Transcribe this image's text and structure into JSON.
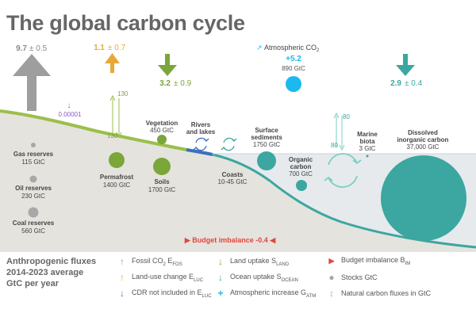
{
  "title": "The global carbon cycle",
  "colors": {
    "fossil": "#9e9e9e",
    "luc": "#e8a838",
    "land": "#7aa63a",
    "ocean": "#3ba7a0",
    "atmos": "#1ab9ef",
    "cdr": "#8c5cc2",
    "imbalance": "#e2463c",
    "stock": "#a8a8a8"
  },
  "fluxes": {
    "fossil": {
      "value": "9.7",
      "unc": "± 0.5"
    },
    "luc": {
      "value": "1.1",
      "unc": "± 0.7"
    },
    "land": {
      "value": "3.2",
      "unc": "± 0.9"
    },
    "atmos": {
      "label": "Atmospheric CO",
      "sub": "2",
      "value": "+5.2",
      "stock": "890 GtC"
    },
    "ocean": {
      "value": "2.9",
      "unc": "± 0.4"
    },
    "cdr": {
      "value": "0.00001"
    }
  },
  "natural": {
    "land_up": "130",
    "land_down": "130",
    "ocean_up": "80",
    "ocean_down": "80"
  },
  "stocks": {
    "gas": {
      "name": "Gas reserves",
      "value": "115 GtC"
    },
    "oil": {
      "name": "Oil reserves",
      "value": "230 GtC"
    },
    "coal": {
      "name": "Coal reserves",
      "value": "560 GtC"
    },
    "permafrost": {
      "name": "Permafrost",
      "value": "1400 GtC"
    },
    "vegetation": {
      "name": "Vegetation",
      "value": "450 GtC"
    },
    "soils": {
      "name": "Soils",
      "value": "1700 GtC"
    },
    "rivers": {
      "name1": "Rivers",
      "name2": "and lakes"
    },
    "coasts": {
      "name": "Coasts",
      "value": "10-45 GtC"
    },
    "sediments": {
      "name1": "Surface",
      "name2": "sediments",
      "value": "1750 GtC"
    },
    "organic": {
      "name1": "Organic",
      "name2": "carbon",
      "value": "700 GtC"
    },
    "biota": {
      "name1": "Marine",
      "name2": "biota",
      "value": "3 GtC"
    },
    "dic": {
      "name1": "Dissolved",
      "name2": "inorganic carbon",
      "value": "37,000 GtC"
    }
  },
  "budget": {
    "label": "Budget imbalance -0.4"
  },
  "legend": {
    "heading": [
      "Anthropogenic fluxes",
      "2014-2023 average",
      "GtC per year"
    ],
    "items": [
      {
        "sym": "↑",
        "text": "Fossil CO",
        "sub": "2",
        "text2": " E",
        "sub2": "FOS"
      },
      {
        "sym": "↑",
        "text": "Land-use change E",
        "sub": "LUC"
      },
      {
        "sym": "↓",
        "text": "CDR not included in E",
        "sub": "LUC"
      },
      {
        "sym": "↓",
        "text": "Land uptake S",
        "sub": "LAND"
      },
      {
        "sym": "↓",
        "text": "Ocean uptake S",
        "sub": "OCEAN"
      },
      {
        "sym": "+",
        "text": "Atmospheric increase G",
        "sub": "ATM"
      },
      {
        "sym": "▶",
        "text": "Budget imbalance B",
        "sub": "IM"
      },
      {
        "sym": "●",
        "text": "Stocks GtC"
      },
      {
        "sym": "↕",
        "text": "Natural carbon fluxes in GtC"
      }
    ]
  }
}
